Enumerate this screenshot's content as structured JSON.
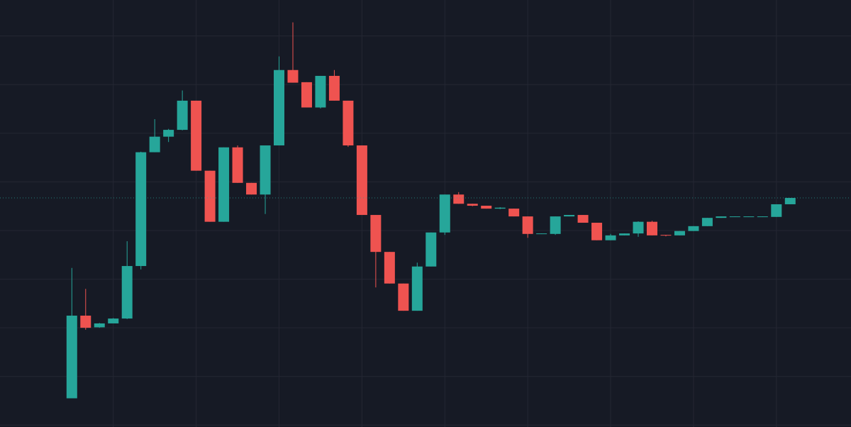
{
  "chart_data": {
    "type": "candlestick",
    "x": [
      0,
      1,
      2,
      3,
      4,
      5,
      6,
      7,
      8,
      9,
      10,
      11,
      12,
      13,
      14,
      15,
      16,
      17,
      18,
      19,
      20,
      21,
      22,
      23,
      24,
      25,
      26,
      27,
      28,
      29,
      30,
      31,
      32,
      33,
      34,
      35,
      36,
      37,
      38,
      39,
      40,
      41,
      42,
      43,
      44,
      45,
      46,
      47,
      48,
      49,
      50,
      51,
      52
    ],
    "open": [
      5.5,
      22.5,
      20.1,
      20.9,
      21.9,
      32.7,
      56.1,
      59.3,
      60.7,
      66.7,
      52.3,
      41.8,
      57.1,
      49.8,
      47.4,
      57.5,
      73.0,
      70.5,
      65.3,
      71.8,
      66.7,
      57.5,
      43.2,
      35.6,
      29.1,
      23.5,
      32.6,
      39.6,
      47.4,
      45.5,
      45.1,
      44.5,
      44.5,
      42.9,
      39.3,
      39.3,
      42.9,
      43.2,
      41.6,
      38.0,
      39.0,
      39.4,
      41.8,
      39.1,
      39.0,
      39.9,
      40.9,
      42.6,
      42.8,
      42.8,
      42.8,
      42.8,
      45.4
    ],
    "high": [
      32.3,
      28.0,
      21.0,
      22.0,
      37.8,
      56.2,
      62.9,
      60.9,
      68.8,
      66.7,
      52.3,
      57.1,
      57.5,
      49.8,
      57.5,
      75.8,
      82.8,
      70.5,
      71.8,
      73.0,
      66.7,
      57.5,
      43.2,
      35.6,
      29.1,
      33.4,
      39.6,
      47.4,
      47.9,
      45.5,
      45.1,
      44.8,
      44.5,
      42.9,
      39.4,
      42.9,
      43.2,
      43.2,
      41.6,
      39.3,
      39.4,
      41.9,
      42.0,
      39.1,
      39.9,
      40.9,
      42.6,
      42.9,
      42.9,
      42.9,
      42.9,
      45.4,
      46.7
    ],
    "low": [
      5.5,
      19.6,
      20.0,
      20.9,
      21.8,
      32.0,
      56.1,
      58.2,
      60.6,
      52.3,
      41.8,
      41.8,
      49.8,
      47.4,
      43.4,
      57.5,
      70.4,
      65.3,
      65.1,
      66.7,
      57.2,
      43.2,
      28.3,
      29.1,
      23.5,
      23.5,
      32.6,
      39.1,
      45.5,
      45.0,
      44.5,
      44.4,
      42.9,
      38.5,
      39.3,
      39.1,
      42.9,
      41.6,
      38.0,
      38.0,
      39.0,
      38.7,
      39.0,
      38.8,
      39.0,
      39.9,
      40.9,
      42.6,
      42.8,
      42.8,
      42.8,
      42.8,
      45.4
    ],
    "close": [
      22.5,
      20.0,
      20.9,
      21.9,
      32.7,
      56.1,
      59.3,
      60.7,
      66.7,
      52.3,
      41.8,
      57.1,
      49.8,
      47.4,
      57.5,
      73.0,
      70.4,
      65.3,
      71.8,
      66.7,
      57.5,
      43.2,
      35.6,
      29.1,
      23.5,
      32.6,
      39.6,
      47.4,
      45.5,
      45.1,
      44.5,
      44.7,
      42.9,
      39.3,
      39.4,
      42.9,
      43.2,
      41.6,
      38.0,
      39.0,
      39.4,
      41.8,
      39.0,
      39.0,
      39.9,
      40.9,
      42.6,
      42.9,
      42.9,
      42.9,
      42.9,
      45.4,
      46.7
    ],
    "up_color": "#26a69a",
    "down_color": "#ef5350",
    "xlim": [
      -5.2,
      56.4
    ],
    "ylim": [
      -0.4,
      87.4
    ],
    "xticks": [
      3,
      9,
      15,
      21,
      27,
      33,
      39,
      45,
      51
    ],
    "yticks": [
      0,
      10,
      20,
      30,
      40,
      50,
      60,
      70,
      80
    ],
    "grid": true
  }
}
